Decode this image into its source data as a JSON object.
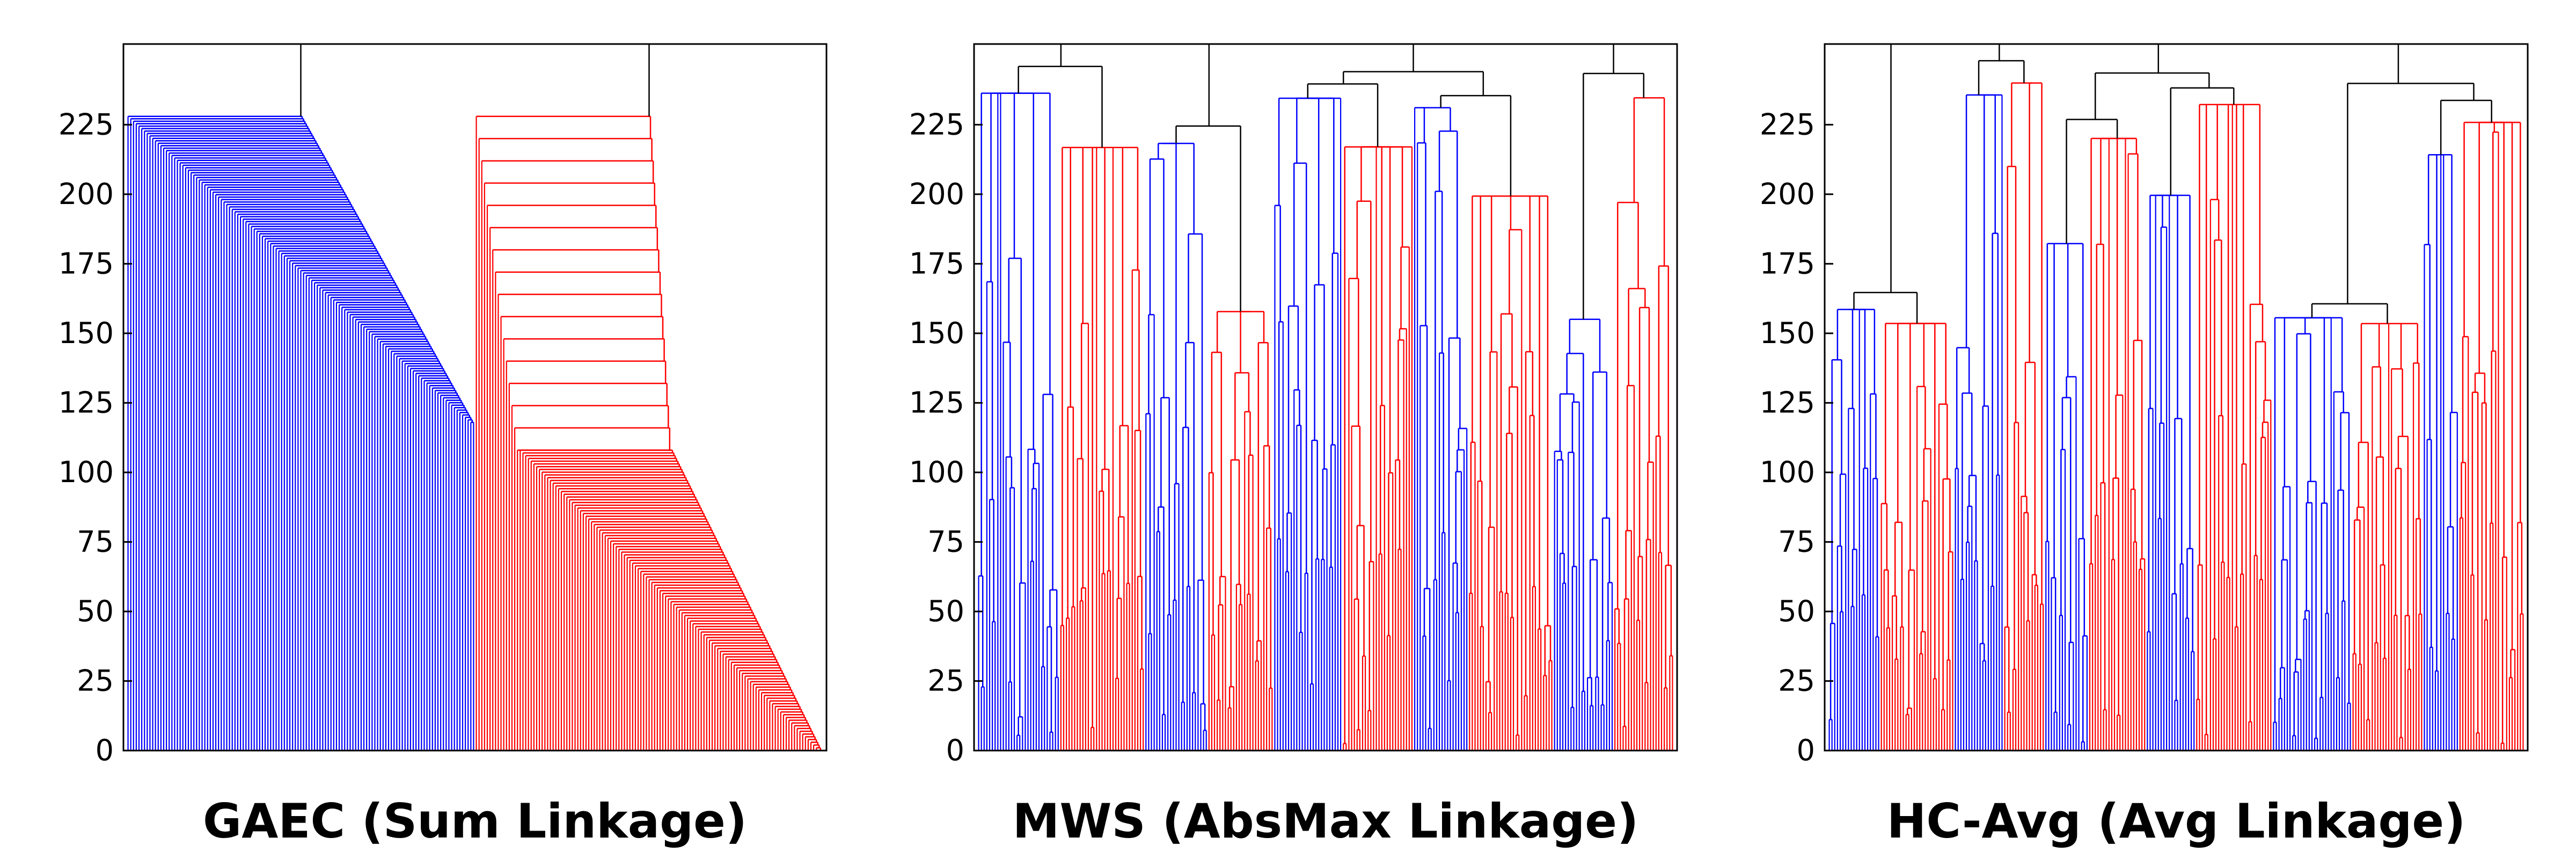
{
  "chart_data": [
    {
      "type": "dendrogram",
      "title": "GAEC (Sum Linkage)",
      "ylim": [
        0,
        254
      ],
      "yticks": [
        0,
        25,
        50,
        75,
        100,
        125,
        150,
        175,
        200,
        225
      ],
      "n_leaves": 254,
      "leaf_colors": {
        "blue_leaves": 127,
        "red_leaves": 127
      },
      "blue_cluster_merge_heights": {
        "first_merge": 118,
        "last_merge": 228,
        "merges": 110
      },
      "red_cluster_merge_heights": {
        "first_merge": 0,
        "last_merge": 228,
        "merges": 126
      },
      "final_merge_height": 254,
      "colors": {
        "blue": "#0000ff",
        "red": "#ff0000",
        "merge_edge": "#000000"
      }
    },
    {
      "type": "dendrogram",
      "title": "MWS (AbsMax Linkage)",
      "ylim": [
        0,
        254
      ],
      "yticks": [
        0,
        25,
        50,
        75,
        100,
        125,
        150,
        175,
        200,
        225
      ],
      "n_leaves": 254,
      "interleaved_groups": [
        "blue",
        "red",
        "blue",
        "red",
        "blue",
        "red",
        "blue",
        "red",
        "blue",
        "red"
      ],
      "final_merge_height": 254,
      "colors": {
        "blue": "#0000ff",
        "red": "#ff0000",
        "merge_edge": "#000000"
      }
    },
    {
      "type": "dendrogram",
      "title": "HC-Avg (Avg Linkage)",
      "ylim": [
        0,
        254
      ],
      "yticks": [
        0,
        25,
        50,
        75,
        100,
        125,
        150,
        175,
        200,
        225
      ],
      "n_leaves": 254,
      "interleaved_groups": [
        "blue",
        "red",
        "blue",
        "red",
        "blue",
        "red",
        "blue",
        "red",
        "blue",
        "red",
        "blue",
        "red"
      ],
      "final_merge_height": 254,
      "colors": {
        "blue": "#0000ff",
        "red": "#ff0000",
        "merge_edge": "#000000"
      }
    }
  ]
}
